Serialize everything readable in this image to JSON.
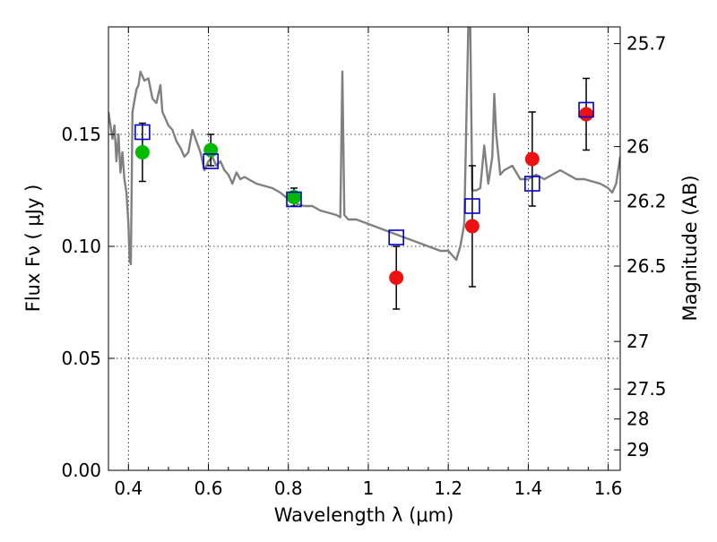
{
  "chart_data": {
    "type": "scatter",
    "title": "",
    "xlabel": "Wavelength  λ (μm)",
    "ylabel": "Flux  Fν  ( μJy )",
    "y2label": "Magnitude (AB)",
    "xlim": [
      0.35,
      1.63
    ],
    "ylim": [
      0.0,
      0.198
    ],
    "grid": true,
    "x_ticks": [
      0.4,
      0.6,
      0.8,
      1.0,
      1.2,
      1.4,
      1.6
    ],
    "x_tick_labels": [
      "0.4",
      "0.6",
      "0.8",
      "1",
      "1.2",
      "1.4",
      "1.6"
    ],
    "y_ticks": [
      0.0,
      0.05,
      0.1,
      0.15
    ],
    "y_tick_labels": [
      "0.00",
      "0.05",
      "0.10",
      "0.15"
    ],
    "y2_ticks": [
      25.7,
      26,
      26.2,
      26.5,
      27,
      27.5,
      28,
      29
    ],
    "y2_tick_labels": [
      "25.7",
      "26",
      "26.2",
      "26.5",
      "27",
      "27.5",
      "28",
      "29"
    ],
    "colors": {
      "model": "#808080",
      "green_points": "#00bb00",
      "red_points": "#ee1111",
      "squares": "#0000cc",
      "errorbars": "#000000"
    },
    "series": [
      {
        "kind": "line",
        "color": "#808080",
        "x": [
          0.35,
          0.36,
          0.365,
          0.37,
          0.375,
          0.38,
          0.385,
          0.39,
          0.395,
          0.4,
          0.403,
          0.406,
          0.41,
          0.42,
          0.425,
          0.43,
          0.44,
          0.45,
          0.46,
          0.47,
          0.48,
          0.485,
          0.49,
          0.5,
          0.51,
          0.52,
          0.53,
          0.54,
          0.55,
          0.56,
          0.57,
          0.58,
          0.59,
          0.6,
          0.61,
          0.62,
          0.63,
          0.64,
          0.65,
          0.66,
          0.67,
          0.68,
          0.69,
          0.7,
          0.72,
          0.74,
          0.76,
          0.78,
          0.8,
          0.82,
          0.84,
          0.86,
          0.88,
          0.9,
          0.92,
          0.93,
          0.935,
          0.94,
          0.95,
          0.97,
          1.0,
          1.03,
          1.06,
          1.09,
          1.12,
          1.15,
          1.18,
          1.2,
          1.22,
          1.23,
          1.24,
          1.25,
          1.255,
          1.26,
          1.27,
          1.28,
          1.29,
          1.3,
          1.31,
          1.315,
          1.32,
          1.33,
          1.34,
          1.36,
          1.38,
          1.4,
          1.42,
          1.44,
          1.46,
          1.48,
          1.5,
          1.52,
          1.54,
          1.56,
          1.58,
          1.6,
          1.61,
          1.62,
          1.63
        ],
        "values": [
          0.16,
          0.148,
          0.154,
          0.138,
          0.15,
          0.133,
          0.142,
          0.13,
          0.124,
          0.11,
          0.094,
          0.092,
          0.16,
          0.17,
          0.172,
          0.178,
          0.174,
          0.175,
          0.166,
          0.164,
          0.172,
          0.16,
          0.158,
          0.154,
          0.152,
          0.147,
          0.144,
          0.14,
          0.142,
          0.152,
          0.147,
          0.142,
          0.134,
          0.138,
          0.14,
          0.136,
          0.138,
          0.134,
          0.132,
          0.128,
          0.133,
          0.13,
          0.131,
          0.13,
          0.128,
          0.127,
          0.126,
          0.124,
          0.121,
          0.119,
          0.118,
          0.118,
          0.116,
          0.115,
          0.114,
          0.113,
          0.178,
          0.114,
          0.112,
          0.112,
          0.11,
          0.108,
          0.106,
          0.104,
          0.102,
          0.1,
          0.098,
          0.098,
          0.094,
          0.1,
          0.11,
          0.198,
          0.198,
          0.125,
          0.125,
          0.126,
          0.145,
          0.128,
          0.14,
          0.168,
          0.15,
          0.132,
          0.134,
          0.136,
          0.13,
          0.13,
          0.132,
          0.13,
          0.132,
          0.134,
          0.132,
          0.13,
          0.13,
          0.129,
          0.128,
          0.126,
          0.124,
          0.128,
          0.14
        ]
      },
      {
        "kind": "points",
        "marker": "circle",
        "color": "#00bb00",
        "x": [
          0.435,
          0.606,
          0.814
        ],
        "values": [
          0.142,
          0.143,
          0.122
        ],
        "err": [
          [
            0.013,
            0.013
          ],
          [
            0.007,
            0.007
          ],
          [
            0.004,
            0.004
          ]
        ]
      },
      {
        "kind": "points",
        "marker": "circle",
        "color": "#ee1111",
        "x": [
          1.07,
          1.26,
          1.41,
          1.545
        ],
        "values": [
          0.086,
          0.109,
          0.139,
          0.159
        ],
        "err": [
          [
            0.014,
            0.014
          ],
          [
            0.027,
            0.027
          ],
          [
            0.021,
            0.021
          ],
          [
            0.016,
            0.016
          ]
        ]
      },
      {
        "kind": "points",
        "marker": "square",
        "color": "#0000cc",
        "x": [
          0.435,
          0.606,
          0.814,
          1.07,
          1.26,
          1.41,
          1.545
        ],
        "values": [
          0.151,
          0.138,
          0.121,
          0.104,
          0.118,
          0.128,
          0.161
        ]
      }
    ]
  }
}
